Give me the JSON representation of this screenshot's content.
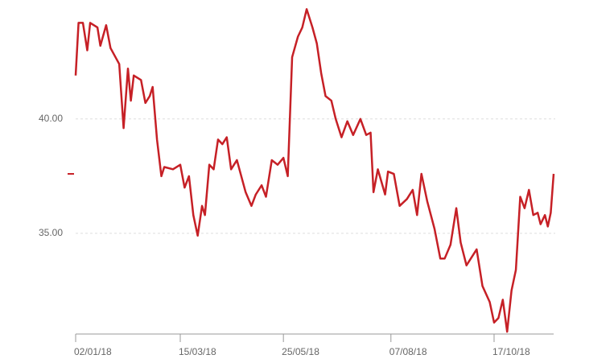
{
  "chart_data": {
    "type": "line",
    "x": [
      "2018-01-02",
      "2018-01-04",
      "2018-01-07",
      "2018-01-10",
      "2018-01-12",
      "2018-01-17",
      "2018-01-19",
      "2018-01-23",
      "2018-01-26",
      "2018-02-01",
      "2018-02-04",
      "2018-02-07",
      "2018-02-09",
      "2018-02-11",
      "2018-02-16",
      "2018-02-19",
      "2018-02-22",
      "2018-02-24",
      "2018-02-27",
      "2018-03-02",
      "2018-03-04",
      "2018-03-10",
      "2018-03-15",
      "2018-03-18",
      "2018-03-21",
      "2018-03-24",
      "2018-03-27",
      "2018-03-30",
      "2018-04-01",
      "2018-04-04",
      "2018-04-07",
      "2018-04-10",
      "2018-04-13",
      "2018-04-16",
      "2018-04-19",
      "2018-04-23",
      "2018-04-29",
      "2018-05-03",
      "2018-05-06",
      "2018-05-10",
      "2018-05-13",
      "2018-05-17",
      "2018-05-21",
      "2018-05-25",
      "2018-05-28",
      "2018-05-31",
      "2018-06-04",
      "2018-06-07",
      "2018-06-10",
      "2018-06-14",
      "2018-06-17",
      "2018-06-20",
      "2018-06-23",
      "2018-06-27",
      "2018-06-30",
      "2018-07-04",
      "2018-07-08",
      "2018-07-12",
      "2018-07-17",
      "2018-07-21",
      "2018-07-24",
      "2018-07-26",
      "2018-07-29",
      "2018-08-03",
      "2018-08-05",
      "2018-08-09",
      "2018-08-13",
      "2018-08-18",
      "2018-08-22",
      "2018-08-25",
      "2018-08-28",
      "2018-09-01",
      "2018-09-06",
      "2018-09-10",
      "2018-09-13",
      "2018-09-17",
      "2018-09-21",
      "2018-09-24",
      "2018-09-28",
      "2018-10-01",
      "2018-10-05",
      "2018-10-09",
      "2018-10-14",
      "2018-10-17",
      "2018-10-20",
      "2018-10-23",
      "2018-10-26",
      "2018-10-29",
      "2018-11-01",
      "2018-11-04",
      "2018-11-07",
      "2018-11-10",
      "2018-11-13",
      "2018-11-16",
      "2018-11-18",
      "2018-11-21",
      "2018-11-23",
      "2018-11-25",
      "2018-11-27"
    ],
    "series": [
      {
        "color": "#c62026",
        "values": [
          41.9,
          44.2,
          44.2,
          43.0,
          44.2,
          44.0,
          43.2,
          44.1,
          43.1,
          42.4,
          39.6,
          42.2,
          40.8,
          41.9,
          41.7,
          40.7,
          41.0,
          41.4,
          39.1,
          37.5,
          37.9,
          37.8,
          38.0,
          37.0,
          37.5,
          35.8,
          34.9,
          36.2,
          35.8,
          38.0,
          37.8,
          39.1,
          38.9,
          39.2,
          37.8,
          38.2,
          36.8,
          36.2,
          36.7,
          37.1,
          36.6,
          38.2,
          38.0,
          38.3,
          37.5,
          42.7,
          43.6,
          44.0,
          44.8,
          44.0,
          43.3,
          42.0,
          41.0,
          40.8,
          40.0,
          39.2,
          39.9,
          39.3,
          40.0,
          39.3,
          39.4,
          36.8,
          37.8,
          36.7,
          37.7,
          37.6,
          36.2,
          36.5,
          36.9,
          35.8,
          37.6,
          36.4,
          35.2,
          33.9,
          33.9,
          34.5,
          36.1,
          34.6,
          33.6,
          33.9,
          34.3,
          32.7,
          32.0,
          31.1,
          31.3,
          32.1,
          30.7,
          32.5,
          33.4,
          36.6,
          36.1,
          36.9,
          35.8,
          35.9,
          35.4,
          35.8,
          35.3,
          35.9,
          37.6
        ]
      }
    ],
    "xlim": [
      "2018-01-02",
      "2018-11-27"
    ],
    "xticks": [
      {
        "value": "2018-01-02",
        "label": "02/01/18"
      },
      {
        "value": "2018-03-15",
        "label": "15/03/18"
      },
      {
        "value": "2018-05-25",
        "label": "25/05/18"
      },
      {
        "value": "2018-08-07",
        "label": "07/08/18"
      },
      {
        "value": "2018-10-17",
        "label": "17/10/18"
      }
    ],
    "ylim": [
      30.6,
      45.2
    ],
    "yticks": [
      {
        "value": 35,
        "label": "35.00"
      },
      {
        "value": 40,
        "label": "40.00"
      }
    ],
    "grid": true
  }
}
